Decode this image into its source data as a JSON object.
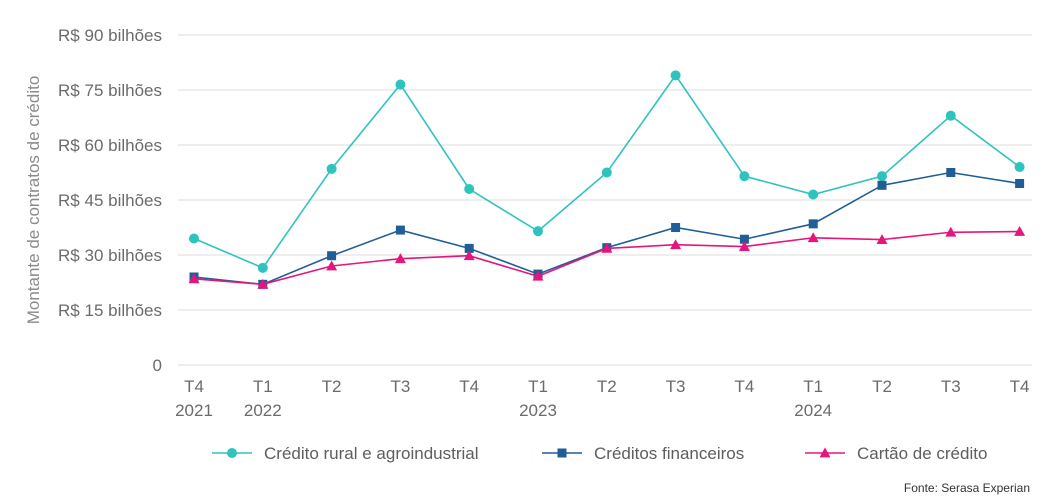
{
  "chart_data": {
    "type": "line",
    "ylabel": "Montante de contratos de crédito",
    "ylim": [
      0,
      90
    ],
    "yticks": [
      0,
      15,
      30,
      45,
      60,
      75,
      90
    ],
    "ytick_labels": [
      "0",
      "R$ 15 bilhões",
      "R$ 30 bilhões",
      "R$ 45 bilhões",
      "R$ 60 bilhões",
      "R$ 75 bilhões",
      "R$ 90 bilhões"
    ],
    "categories": [
      {
        "q": "T4",
        "year": "2021"
      },
      {
        "q": "T1",
        "year": "2022"
      },
      {
        "q": "T2",
        "year": ""
      },
      {
        "q": "T3",
        "year": ""
      },
      {
        "q": "T4",
        "year": ""
      },
      {
        "q": "T1",
        "year": "2023"
      },
      {
        "q": "T2",
        "year": ""
      },
      {
        "q": "T3",
        "year": ""
      },
      {
        "q": "T4",
        "year": ""
      },
      {
        "q": "T1",
        "year": "2024"
      },
      {
        "q": "T2",
        "year": ""
      },
      {
        "q": "T3",
        "year": ""
      },
      {
        "q": "T4",
        "year": ""
      }
    ],
    "series": [
      {
        "name": "Crédito rural e agroindustrial",
        "color": "#2ec4bd",
        "marker": "circle",
        "values": [
          34.5,
          26.5,
          53.5,
          76.5,
          48.0,
          36.5,
          52.5,
          79.0,
          51.5,
          46.5,
          51.5,
          68.0,
          54.0
        ]
      },
      {
        "name": "Créditos financeiros",
        "color": "#1f5e96",
        "marker": "square",
        "values": [
          24.0,
          22.0,
          29.8,
          36.8,
          31.8,
          24.8,
          32.0,
          37.5,
          34.3,
          38.5,
          49.0,
          52.5,
          49.5
        ]
      },
      {
        "name": "Cartão de crédito",
        "color": "#e6157b",
        "marker": "triangle",
        "values": [
          23.5,
          22.0,
          27.0,
          29.0,
          29.8,
          24.2,
          31.8,
          32.8,
          32.3,
          34.7,
          34.2,
          36.2,
          36.4
        ]
      }
    ],
    "legend_position": "bottom",
    "grid": true,
    "source": "Fonte: Serasa Experian"
  }
}
